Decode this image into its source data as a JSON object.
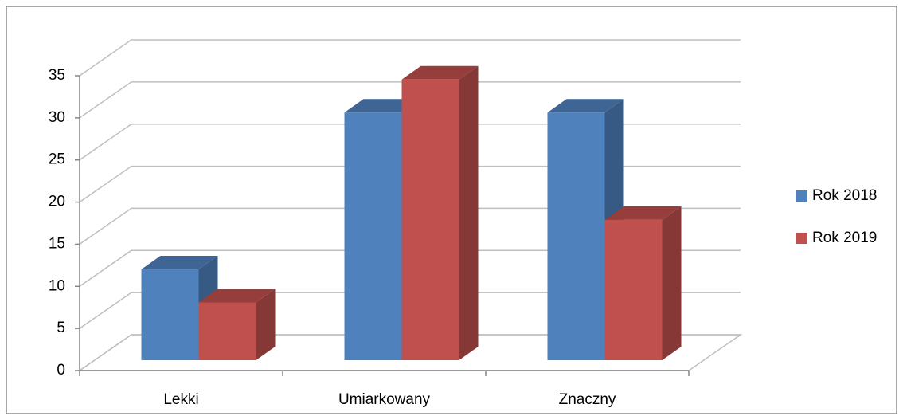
{
  "chart_data": {
    "type": "bar3d",
    "categories": [
      "Lekki",
      "Umiarkowany",
      "Znaczny"
    ],
    "series": [
      {
        "name": "Rok 2018",
        "color": "#4f81bd",
        "values": [
          11,
          30,
          30
        ]
      },
      {
        "name": "Rok 2019",
        "color": "#c0504d",
        "values": [
          7,
          34,
          17
        ]
      }
    ],
    "ylim": [
      0,
      35
    ],
    "yticks": [
      0,
      5,
      10,
      15,
      20,
      25,
      30,
      35
    ],
    "grid": true,
    "legend": "right"
  }
}
